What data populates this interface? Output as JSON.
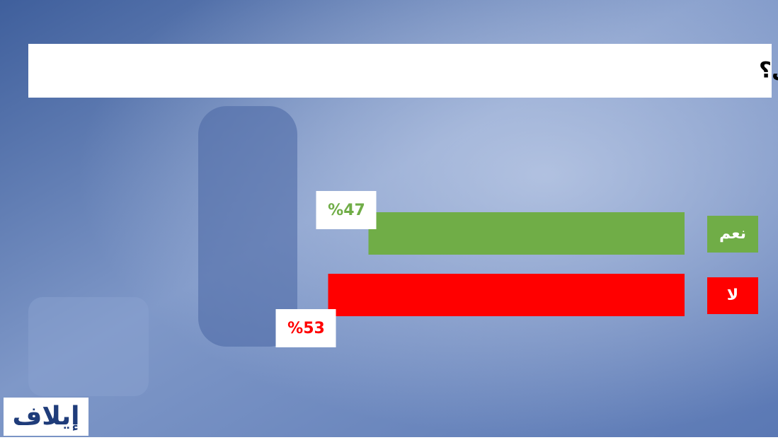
{
  "chart_data": {
    "type": "bar",
    "orientation": "horizontal",
    "title": "هل آن أوان رفع إجراءات كورونا الوقائية في ما يتعلق بالسفر الدولي؟",
    "categories": [
      "نعم",
      "لا"
    ],
    "values": [
      47,
      53
    ],
    "value_labels": [
      "%47",
      "%53"
    ],
    "colors": [
      "#70ad47",
      "#ff0000"
    ]
  },
  "logo": "إيلاف"
}
